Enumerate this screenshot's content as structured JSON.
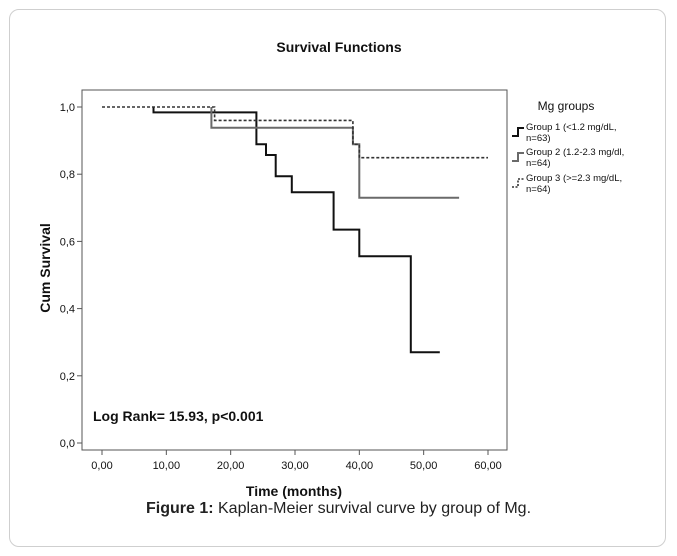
{
  "chart_data": {
    "type": "line",
    "subtype": "kaplan-meier step",
    "title": "Survival Functions",
    "xlabel": "Time (months)",
    "ylabel": "Cum Survival",
    "xlim": [
      0,
      60
    ],
    "ylim": [
      0,
      1.0
    ],
    "x_ticks": [
      "0,00",
      "10,00",
      "20,00",
      "30,00",
      "40,00",
      "50,00",
      "60,00"
    ],
    "y_ticks": [
      "0,0",
      "0,2",
      "0,4",
      "0,6",
      "0,8",
      "1,0"
    ],
    "x_tick_values": [
      0,
      10,
      20,
      30,
      40,
      50,
      60
    ],
    "y_tick_values": [
      0,
      0.2,
      0.4,
      0.6,
      0.8,
      1.0
    ],
    "grid": false,
    "legend_title": "Mg groups",
    "legend_position": "right",
    "annotation": "Log Rank= 15.93, p<0.001",
    "series": [
      {
        "name": "Group 1 (<1.2 mg/dL, n=63)",
        "legend_lines": [
          "Group 1 (<1.2 mg/dL,",
          "n=63)"
        ],
        "color": "#111111",
        "style": "solid",
        "steps": [
          [
            8,
            1.0
          ],
          [
            8,
            0.984
          ],
          [
            24,
            0.984
          ],
          [
            24,
            0.889
          ],
          [
            25.5,
            0.889
          ],
          [
            25.5,
            0.857
          ],
          [
            27,
            0.857
          ],
          [
            27,
            0.794
          ],
          [
            29.5,
            0.794
          ],
          [
            29.5,
            0.746
          ],
          [
            36,
            0.746
          ],
          [
            36,
            0.635
          ],
          [
            40,
            0.635
          ],
          [
            40,
            0.556
          ],
          [
            48,
            0.556
          ],
          [
            48,
            0.27
          ],
          [
            52.5,
            0.27
          ]
        ]
      },
      {
        "name": "Group 2 (1.2-2.3 mg/dl, n=64)",
        "legend_lines": [
          "Group 2 (1.2-2.3 mg/dl,",
          "n=64)"
        ],
        "color": "#6a6a6a",
        "style": "solid",
        "steps": [
          [
            17,
            1.0
          ],
          [
            17,
            0.938
          ],
          [
            39,
            0.938
          ],
          [
            39,
            0.889
          ],
          [
            40,
            0.889
          ],
          [
            40,
            0.73
          ],
          [
            55.5,
            0.73
          ]
        ]
      },
      {
        "name": "Group 3 (>=2.3 mg/dL, n=64)",
        "legend_lines": [
          "Group 3 (>=2.3 mg/dL,",
          "n=64)"
        ],
        "color": "#333333",
        "style": "dotted",
        "steps": [
          [
            0,
            1.0
          ],
          [
            17.5,
            1.0
          ],
          [
            17.5,
            0.96
          ],
          [
            39,
            0.96
          ],
          [
            39,
            0.889
          ],
          [
            40,
            0.889
          ],
          [
            40,
            0.849
          ],
          [
            60,
            0.849
          ]
        ]
      }
    ]
  },
  "caption": {
    "label": "Figure 1:",
    "text": " Kaplan-Meier survival curve by group of Mg."
  }
}
